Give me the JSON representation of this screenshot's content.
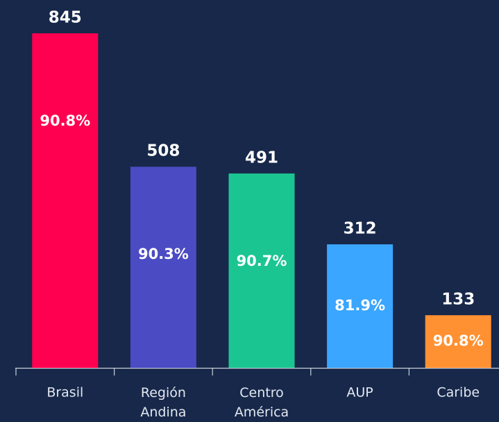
{
  "chart_data": {
    "type": "bar",
    "categories": [
      "Brasil",
      "Región Andina",
      "Centro América",
      "AUP",
      "Caribe"
    ],
    "values": [
      845,
      508,
      491,
      312,
      133
    ],
    "inner_labels": [
      "90.8%",
      "90.3%",
      "90.7%",
      "81.9%",
      "90.8%"
    ],
    "colors": [
      "#ff0050",
      "#4b4bc3",
      "#1bc592",
      "#3aa6ff",
      "#ff9132"
    ]
  }
}
